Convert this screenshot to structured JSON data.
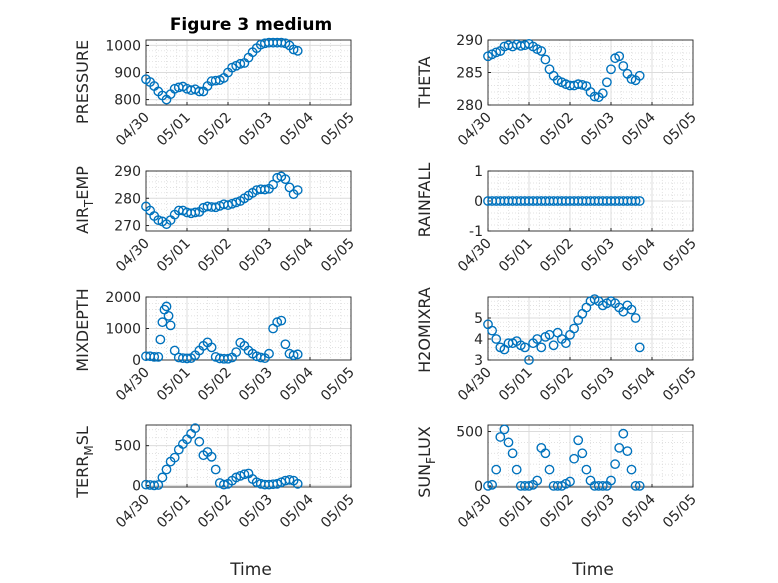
{
  "chart_data": [
    {
      "type": "scatter",
      "title": "Figure 3 medium",
      "ylabel": "PRESSURE",
      "ylim": [
        780,
        1020
      ],
      "yticks": [
        "800",
        "900",
        "1000"
      ],
      "xticks": [
        "04/30",
        "05/01",
        "05/02",
        "05/03",
        "05/04",
        "05/05"
      ],
      "xlim": [
        0,
        5
      ],
      "grid": true,
      "x": [
        0.0,
        0.1,
        0.2,
        0.3,
        0.4,
        0.5,
        0.6,
        0.7,
        0.8,
        0.9,
        1.0,
        1.1,
        1.2,
        1.3,
        1.4,
        1.5,
        1.6,
        1.7,
        1.8,
        1.9,
        2.0,
        2.1,
        2.2,
        2.3,
        2.4,
        2.5,
        2.6,
        2.7,
        2.8,
        2.9,
        3.0,
        3.1,
        3.2,
        3.3,
        3.4,
        3.5,
        3.6,
        3.7
      ],
      "y": [
        875,
        865,
        850,
        830,
        815,
        800,
        820,
        840,
        845,
        848,
        840,
        835,
        838,
        830,
        830,
        850,
        868,
        870,
        872,
        880,
        900,
        918,
        925,
        932,
        935,
        955,
        975,
        990,
        1003,
        1008,
        1010,
        1010,
        1010,
        1010,
        1008,
        1000,
        985,
        980
      ]
    },
    {
      "type": "scatter",
      "ylabel": "THETA",
      "ylim": [
        280,
        290
      ],
      "yticks": [
        "280",
        "285",
        "290"
      ],
      "xticks": [
        "04/30",
        "05/01",
        "05/02",
        "05/03",
        "05/04",
        "05/05"
      ],
      "xlim": [
        0,
        5
      ],
      "grid": true,
      "x": [
        0.0,
        0.1,
        0.2,
        0.3,
        0.4,
        0.5,
        0.6,
        0.7,
        0.8,
        0.9,
        1.0,
        1.1,
        1.2,
        1.3,
        1.4,
        1.5,
        1.6,
        1.7,
        1.8,
        1.9,
        2.0,
        2.1,
        2.2,
        2.3,
        2.4,
        2.5,
        2.6,
        2.7,
        2.8,
        2.9,
        3.0,
        3.1,
        3.2,
        3.3,
        3.4,
        3.5,
        3.6,
        3.7
      ],
      "y": [
        287.5,
        287.8,
        288.1,
        288.3,
        289.0,
        289.2,
        289.0,
        289.3,
        289.1,
        289.2,
        289.4,
        289.0,
        288.6,
        288.3,
        287.0,
        285.5,
        284.5,
        283.8,
        283.5,
        283.2,
        283.0,
        283.0,
        283.2,
        283.1,
        282.9,
        282.0,
        281.3,
        281.2,
        281.8,
        283.5,
        285.5,
        287.2,
        287.5,
        286.0,
        284.8,
        284.0,
        283.8,
        284.5
      ]
    },
    {
      "type": "scatter",
      "ylabel": "AIR_TEMP",
      "ylim": [
        268,
        290
      ],
      "yticks": [
        "270",
        "280",
        "290"
      ],
      "xticks": [
        "04/30",
        "05/01",
        "05/02",
        "05/03",
        "05/04",
        "05/05"
      ],
      "xlim": [
        0,
        5
      ],
      "grid": true,
      "x": [
        0.0,
        0.1,
        0.2,
        0.3,
        0.4,
        0.5,
        0.6,
        0.7,
        0.8,
        0.9,
        1.0,
        1.1,
        1.2,
        1.3,
        1.4,
        1.5,
        1.6,
        1.7,
        1.8,
        1.9,
        2.0,
        2.1,
        2.2,
        2.3,
        2.4,
        2.5,
        2.6,
        2.7,
        2.8,
        2.9,
        3.0,
        3.1,
        3.2,
        3.3,
        3.4,
        3.5,
        3.6,
        3.7
      ],
      "y": [
        277,
        275.5,
        273.5,
        272,
        271.5,
        270.5,
        272,
        274,
        275.5,
        275.5,
        274.8,
        274.5,
        274.8,
        275,
        276.5,
        277,
        276.8,
        276.7,
        277.2,
        277.8,
        277.5,
        278,
        278.5,
        279,
        280,
        281,
        282,
        283,
        283.3,
        283.2,
        283.5,
        285,
        287.5,
        288,
        287,
        284,
        281.5,
        283
      ]
    },
    {
      "type": "scatter",
      "ylabel": "RAINFALL",
      "ylim": [
        -1,
        1
      ],
      "yticks": [
        "-1",
        "0",
        "1"
      ],
      "xticks": [
        "04/30",
        "05/01",
        "05/02",
        "05/03",
        "05/04",
        "05/05"
      ],
      "xlim": [
        0,
        5
      ],
      "grid": true,
      "x": [
        0.0,
        0.1,
        0.2,
        0.3,
        0.4,
        0.5,
        0.6,
        0.7,
        0.8,
        0.9,
        1.0,
        1.1,
        1.2,
        1.3,
        1.4,
        1.5,
        1.6,
        1.7,
        1.8,
        1.9,
        2.0,
        2.1,
        2.2,
        2.3,
        2.4,
        2.5,
        2.6,
        2.7,
        2.8,
        2.9,
        3.0,
        3.1,
        3.2,
        3.3,
        3.4,
        3.5,
        3.6,
        3.7
      ],
      "y": [
        0,
        0,
        0,
        0,
        0,
        0,
        0,
        0,
        0,
        0,
        0,
        0,
        0,
        0,
        0,
        0,
        0,
        0,
        0,
        0,
        0,
        0,
        0,
        0,
        0,
        0,
        0,
        0,
        0,
        0,
        0,
        0,
        0,
        0,
        0,
        0,
        0,
        0
      ]
    },
    {
      "type": "scatter",
      "ylabel": "MIXDEPTH",
      "ylim": [
        0,
        2000
      ],
      "yticks": [
        "0",
        "1000",
        "2000"
      ],
      "xticks": [
        "04/30",
        "05/01",
        "05/02",
        "05/03",
        "05/04",
        "05/05"
      ],
      "xlim": [
        0,
        5
      ],
      "grid": true,
      "x": [
        0.0,
        0.1,
        0.2,
        0.3,
        0.35,
        0.4,
        0.45,
        0.5,
        0.55,
        0.6,
        0.7,
        0.8,
        0.9,
        1.0,
        1.1,
        1.2,
        1.3,
        1.4,
        1.5,
        1.6,
        1.7,
        1.8,
        1.9,
        2.0,
        2.1,
        2.2,
        2.3,
        2.4,
        2.5,
        2.6,
        2.7,
        2.8,
        2.9,
        3.0,
        3.1,
        3.2,
        3.3,
        3.4,
        3.5,
        3.6,
        3.7
      ],
      "y": [
        120,
        120,
        100,
        100,
        650,
        1200,
        1600,
        1700,
        1400,
        1100,
        300,
        80,
        60,
        50,
        60,
        150,
        300,
        450,
        560,
        400,
        100,
        50,
        40,
        40,
        80,
        250,
        550,
        450,
        300,
        200,
        120,
        80,
        60,
        200,
        1000,
        1200,
        1250,
        500,
        200,
        150,
        180
      ]
    },
    {
      "type": "scatter",
      "ylabel": "H2OMIXRA",
      "ylim": [
        3,
        6
      ],
      "yticks": [
        "3",
        "4",
        "5"
      ],
      "xticks": [
        "04/30",
        "05/01",
        "05/02",
        "05/03",
        "05/04",
        "05/05"
      ],
      "xlim": [
        0,
        5
      ],
      "grid": true,
      "x": [
        0.0,
        0.1,
        0.2,
        0.3,
        0.4,
        0.5,
        0.6,
        0.7,
        0.8,
        0.9,
        1.0,
        1.1,
        1.2,
        1.3,
        1.4,
        1.5,
        1.6,
        1.7,
        1.8,
        1.9,
        2.0,
        2.1,
        2.2,
        2.3,
        2.4,
        2.5,
        2.6,
        2.7,
        2.8,
        2.9,
        3.0,
        3.1,
        3.2,
        3.3,
        3.4,
        3.5,
        3.6,
        3.7
      ],
      "y": [
        4.7,
        4.4,
        4.0,
        3.6,
        3.5,
        3.8,
        3.8,
        3.9,
        3.7,
        3.6,
        3.0,
        3.8,
        4.0,
        3.6,
        4.1,
        4.2,
        3.7,
        4.3,
        4.0,
        3.8,
        4.2,
        4.5,
        4.9,
        5.2,
        5.5,
        5.8,
        5.9,
        5.8,
        5.6,
        5.7,
        5.8,
        5.7,
        5.5,
        5.3,
        5.6,
        5.4,
        5.0,
        3.6
      ]
    },
    {
      "type": "scatter",
      "ylabel": "TERR_MSL",
      "ylim": [
        -20,
        760
      ],
      "yticks": [
        "0",
        "500"
      ],
      "xticks": [
        "04/30",
        "05/01",
        "05/02",
        "05/03",
        "05/04",
        "05/05"
      ],
      "xlim": [
        0,
        5
      ],
      "grid": true,
      "x": [
        0.0,
        0.1,
        0.2,
        0.3,
        0.4,
        0.5,
        0.6,
        0.7,
        0.8,
        0.9,
        1.0,
        1.1,
        1.2,
        1.3,
        1.4,
        1.5,
        1.6,
        1.7,
        1.8,
        1.9,
        2.0,
        2.1,
        2.2,
        2.3,
        2.4,
        2.5,
        2.6,
        2.7,
        2.8,
        2.9,
        3.0,
        3.1,
        3.2,
        3.3,
        3.4,
        3.5,
        3.6,
        3.7
      ],
      "y": [
        10,
        5,
        0,
        5,
        100,
        200,
        300,
        350,
        450,
        520,
        580,
        650,
        720,
        550,
        380,
        420,
        360,
        200,
        30,
        10,
        20,
        60,
        100,
        120,
        140,
        150,
        80,
        40,
        20,
        10,
        10,
        15,
        20,
        40,
        60,
        70,
        60,
        20
      ]
    },
    {
      "type": "scatter",
      "ylabel": "SUN_FLUX",
      "ylim": [
        -10,
        560
      ],
      "yticks": [
        "0",
        "500"
      ],
      "xticks": [
        "04/30",
        "05/01",
        "05/02",
        "05/03",
        "05/04",
        "05/05"
      ],
      "xlim": [
        0,
        5
      ],
      "grid": true,
      "x": [
        0.0,
        0.1,
        0.2,
        0.3,
        0.4,
        0.5,
        0.6,
        0.7,
        0.8,
        0.9,
        1.0,
        1.1,
        1.2,
        1.3,
        1.4,
        1.5,
        1.6,
        1.7,
        1.8,
        1.9,
        2.0,
        2.1,
        2.2,
        2.3,
        2.4,
        2.5,
        2.6,
        2.7,
        2.8,
        2.9,
        3.0,
        3.1,
        3.2,
        3.3,
        3.4,
        3.5,
        3.6,
        3.7
      ],
      "y": [
        0,
        10,
        150,
        450,
        520,
        400,
        300,
        150,
        0,
        0,
        0,
        10,
        50,
        350,
        300,
        150,
        0,
        0,
        0,
        20,
        40,
        250,
        420,
        300,
        150,
        50,
        0,
        0,
        0,
        0,
        50,
        200,
        350,
        480,
        320,
        150,
        0,
        0
      ]
    }
  ],
  "x_axis_label": "Time",
  "marker_color": "#0072BD"
}
